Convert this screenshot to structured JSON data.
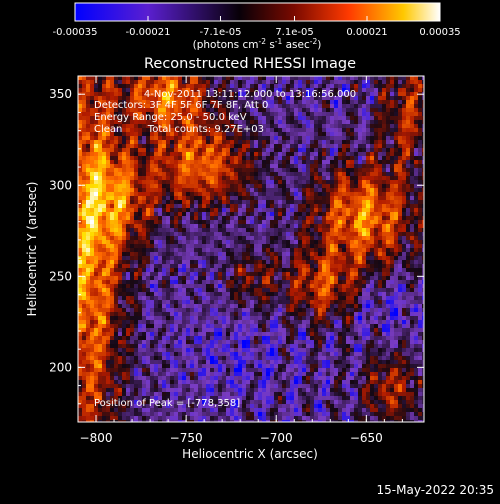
{
  "chart_data": {
    "type": "heatmap",
    "title": "Reconstructed RHESSI Image",
    "xlabel": "Heliocentric X (arcsec)",
    "ylabel": "Heliocentric Y (arcsec)",
    "xlim": [
      -810,
      -618
    ],
    "ylim": [
      170,
      360
    ],
    "xticks": [
      -800,
      -750,
      -700,
      -650
    ],
    "yticks": [
      200,
      250,
      300,
      350
    ],
    "colorbar": {
      "range": [
        -0.00035,
        0.00035
      ],
      "tick_values": [
        -0.00035,
        -0.00021,
        -7.1e-05,
        7.1e-05,
        0.00021,
        0.00035
      ],
      "tick_labels": [
        "-0.00035",
        "-0.00021",
        "-7.1e-05",
        "7.1e-05",
        "0.00021",
        "0.00035"
      ],
      "units_prefix": "(photons cm",
      "units_exp1": "-2",
      "units_mid": " s",
      "units_exp2": "-1",
      "units_mid2": " asec",
      "units_exp3": "-2",
      "units_suffix": ")"
    },
    "annotations": [
      "4-Nov-2011 13:11:12.000 to 13:16:56.000",
      "Detectors: 3F 4F 5F 6F 7F 8F, Att 0",
      "Energy Range: 25.0 - 50.0 keV",
      "Clean        Total counts: 9.27E+03",
      "Position of Peak = [-778,358]"
    ],
    "peak": {
      "x": -778,
      "y": 358
    },
    "colormap_stops": [
      "#0000ff",
      "#7a3cc2",
      "#140814",
      "#b01a00",
      "#ff6a00",
      "#ffe000",
      "#ffffff"
    ]
  },
  "footer": {
    "timestamp": "15-May-2022 20:35"
  }
}
